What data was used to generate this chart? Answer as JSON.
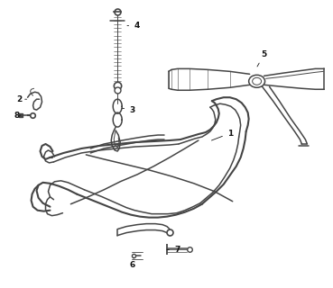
{
  "bg_color": "#ffffff",
  "line_color": "#444444",
  "label_color": "#111111",
  "label_fontsize": 6.5,
  "figsize": [
    3.69,
    3.2
  ],
  "dpi": 100
}
